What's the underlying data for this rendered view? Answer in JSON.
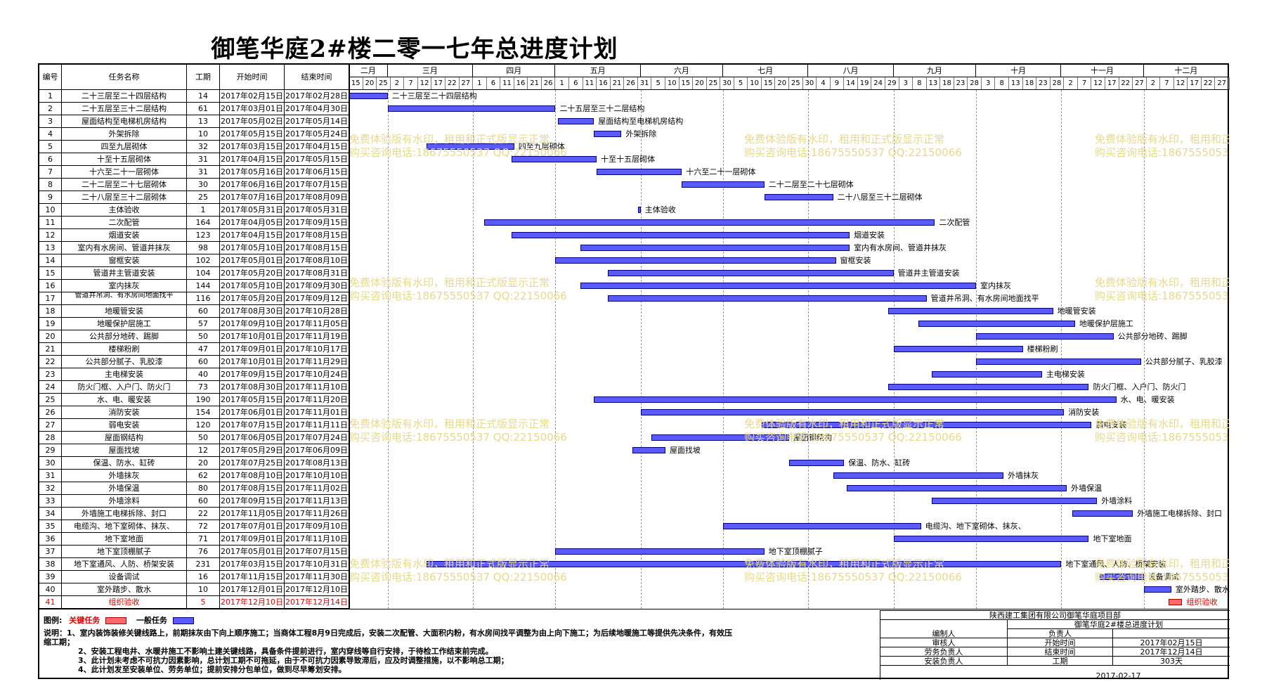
{
  "title": "御笔华庭2#楼二零一七年总进度计划",
  "headers": {
    "id": "编号",
    "name": "任务名称",
    "dur": "工期",
    "start": "开始时间",
    "end": "结束时间"
  },
  "timeline": {
    "months": [
      "二月",
      "三月",
      "四月",
      "五月",
      "六月",
      "七月",
      "八月",
      "九月",
      "十月",
      "十一月",
      "十二月"
    ],
    "days": [
      "15",
      "20",
      "25",
      "2",
      "7",
      "12",
      "17",
      "22",
      "27",
      "1",
      "6",
      "11",
      "16",
      "21",
      "26",
      "1",
      "6",
      "11",
      "16",
      "21",
      "26",
      "31",
      "5",
      "10",
      "15",
      "20",
      "25",
      "30",
      "5",
      "10",
      "15",
      "20",
      "25",
      "30",
      "4",
      "9",
      "14",
      "19",
      "24",
      "29",
      "3",
      "8",
      "13",
      "18",
      "23",
      "28",
      "3",
      "8",
      "13",
      "18",
      "23",
      "28",
      "2",
      "7",
      "12",
      "17",
      "22",
      "27",
      "2",
      "7",
      "12",
      "17",
      "22",
      "27",
      "1"
    ]
  },
  "chart_data": {
    "type": "gantt",
    "title": "御笔华庭2#楼二零一七年总进度计划",
    "tasks": [
      {
        "id": "1",
        "name": "二十三层至二十四层结构",
        "dur": "14",
        "start": "2017年02月15日",
        "end": "2017年02月28日",
        "label": "二十三层至二十四层结构"
      },
      {
        "id": "2",
        "name": "二十五层至三十二层结构",
        "dur": "61",
        "start": "2017年03月01日",
        "end": "2017年04月30日",
        "label": "二十五层至三十二层结构"
      },
      {
        "id": "3",
        "name": "屋面结构至电梯机房结构",
        "dur": "13",
        "start": "2017年05月02日",
        "end": "2017年05月14日",
        "label": "屋面结构至电梯机房结构"
      },
      {
        "id": "4",
        "name": "外架拆除",
        "dur": "10",
        "start": "2017年05月15日",
        "end": "2017年05月24日",
        "label": "外架拆除"
      },
      {
        "id": "5",
        "name": "四至九层砌体",
        "dur": "32",
        "start": "2017年03月15日",
        "end": "2017年04月15日",
        "label": "四至九层砌体"
      },
      {
        "id": "6",
        "name": "十至十五层砌体",
        "dur": "31",
        "start": "2017年04月15日",
        "end": "2017年05月15日",
        "label": "十至十五层砌体"
      },
      {
        "id": "7",
        "name": "十六至二十一层砌体",
        "dur": "31",
        "start": "2017年05月16日",
        "end": "2017年06月15日",
        "label": "十六至二十一层砌体"
      },
      {
        "id": "8",
        "name": "二十二层至二十七层砌体",
        "dur": "30",
        "start": "2017年06月16日",
        "end": "2017年07月15日",
        "label": "二十二层至二十七层砌体"
      },
      {
        "id": "9",
        "name": "二十八层至三十二层砌体",
        "dur": "25",
        "start": "2017年07月16日",
        "end": "2017年08月09日",
        "label": "二十八层至三十二层砌体"
      },
      {
        "id": "10",
        "name": "主体验收",
        "dur": "1",
        "start": "2017年05月31日",
        "end": "2017年05月31日",
        "label": "主体验收"
      },
      {
        "id": "11",
        "name": "二次配管",
        "dur": "164",
        "start": "2017年04月05日",
        "end": "2017年09月15日",
        "label": "二次配管"
      },
      {
        "id": "12",
        "name": "烟道安装",
        "dur": "123",
        "start": "2017年04月15日",
        "end": "2017年08月15日",
        "label": "烟道安装"
      },
      {
        "id": "13",
        "name": "室内有水房间、管道井抹灰",
        "dur": "98",
        "start": "2017年05月10日",
        "end": "2017年08月15日",
        "label": "室内有水房间、管道井抹灰"
      },
      {
        "id": "14",
        "name": "窗框安装",
        "dur": "102",
        "start": "2017年05月01日",
        "end": "2017年08月10日",
        "label": "窗框安装"
      },
      {
        "id": "15",
        "name": "管道井主管道安装",
        "dur": "104",
        "start": "2017年05月20日",
        "end": "2017年08月31日",
        "label": "管道井主管道安装"
      },
      {
        "id": "16",
        "name": "室内抹灰",
        "dur": "144",
        "start": "2017年05月10日",
        "end": "2017年09月30日",
        "label": "室内抹灰"
      },
      {
        "id": "17",
        "name": "管道井吊洞、有水房间地面找平",
        "dur": "116",
        "start": "2017年05月20日",
        "end": "2017年09月12日",
        "label": "管道井吊洞、有水房间地面找平"
      },
      {
        "id": "18",
        "name": "地暖管安装",
        "dur": "60",
        "start": "2017年08月30日",
        "end": "2017年10月28日",
        "label": "地暖管安装"
      },
      {
        "id": "19",
        "name": "地暖保护层施工",
        "dur": "57",
        "start": "2017年09月10日",
        "end": "2017年11月05日",
        "label": "地暖保护层施工"
      },
      {
        "id": "20",
        "name": "公共部分地砖、踢脚",
        "dur": "50",
        "start": "2017年10月01日",
        "end": "2017年11月19日",
        "label": "公共部分地砖、踢脚"
      },
      {
        "id": "21",
        "name": "楼梯粉刷",
        "dur": "47",
        "start": "2017年09月01日",
        "end": "2017年10月17日",
        "label": "楼梯粉刷"
      },
      {
        "id": "22",
        "name": "公共部分腻子、乳胶漆",
        "dur": "60",
        "start": "2017年10月01日",
        "end": "2017年11月29日",
        "label": "公共部分腻子、乳胶漆"
      },
      {
        "id": "23",
        "name": "主电梯安装",
        "dur": "40",
        "start": "2017年09月15日",
        "end": "2017年10月24日",
        "label": "主电梯安装"
      },
      {
        "id": "24",
        "name": "防火门框、入户门、防火门",
        "dur": "73",
        "start": "2017年08月30日",
        "end": "2017年11月10日",
        "label": "防火门框、入户门、防火门"
      },
      {
        "id": "25",
        "name": "水、电、暖安装",
        "dur": "190",
        "start": "2017年05月15日",
        "end": "2017年11月20日",
        "label": "水、电、暖安装"
      },
      {
        "id": "26",
        "name": "消防安装",
        "dur": "154",
        "start": "2017年06月01日",
        "end": "2017年11月01日",
        "label": "消防安装"
      },
      {
        "id": "27",
        "name": "弱电安装",
        "dur": "120",
        "start": "2017年07月15日",
        "end": "2017年11月11日",
        "label": "弱电安装"
      },
      {
        "id": "28",
        "name": "屋面钢结构",
        "dur": "50",
        "start": "2017年06月05日",
        "end": "2017年07月24日",
        "label": "屋面钢结构"
      },
      {
        "id": "29",
        "name": "屋面找坡",
        "dur": "12",
        "start": "2017年05月29日",
        "end": "2017年06月09日",
        "label": "屋面找坡"
      },
      {
        "id": "30",
        "name": "保温、防水、缸砖",
        "dur": "20",
        "start": "2017年07月25日",
        "end": "2017年08月13日",
        "label": "保温、防水、缸砖"
      },
      {
        "id": "31",
        "name": "外墙抹灰",
        "dur": "62",
        "start": "2017年08月10日",
        "end": "2017年10月10日",
        "label": "外墙抹灰"
      },
      {
        "id": "32",
        "name": "外墙保温",
        "dur": "80",
        "start": "2017年08月15日",
        "end": "2017年11月02日",
        "label": "外墙保温"
      },
      {
        "id": "33",
        "name": "外墙涂料",
        "dur": "60",
        "start": "2017年09月15日",
        "end": "2017年11月13日",
        "label": "外墙涂料"
      },
      {
        "id": "34",
        "name": "外墙施工电梯拆除、封口",
        "dur": "22",
        "start": "2017年11月05日",
        "end": "2017年11月26日",
        "label": "外墙施工电梯拆除、封口"
      },
      {
        "id": "35",
        "name": "电缆沟、地下室砌体、抹灰、",
        "dur": "72",
        "start": "2017年07月01日",
        "end": "2017年09月10日",
        "label": "电缆沟、地下室砌体、抹灰、"
      },
      {
        "id": "36",
        "name": "地下室地面",
        "dur": "71",
        "start": "2017年09月01日",
        "end": "2017年11月10日",
        "label": "地下室地面"
      },
      {
        "id": "37",
        "name": "地下室顶棚腻子",
        "dur": "76",
        "start": "2017年05月01日",
        "end": "2017年07月15日",
        "label": "地下室顶棚腻子"
      },
      {
        "id": "38",
        "name": "地下室通风、人防、桥架安装",
        "dur": "231",
        "start": "2017年03月15日",
        "end": "2017年10月31日",
        "label": "地下室通风、人防、桥架安装"
      },
      {
        "id": "39",
        "name": "设备调试",
        "dur": "16",
        "start": "2017年11月15日",
        "end": "2017年11月30日",
        "label": "设备调试"
      },
      {
        "id": "40",
        "name": "室外踏步、散水",
        "dur": "10",
        "start": "2017年12月01日",
        "end": "2017年12月10日",
        "label": "室外踏步、散水"
      },
      {
        "id": "41",
        "name": "组织验收",
        "dur": "5",
        "start": "2017年12月10日",
        "end": "2017年12月14日",
        "label": "组织验收",
        "critical": true
      }
    ]
  },
  "legend": {
    "title": "图例:",
    "critical": "关键任务",
    "normal": "一般任务"
  },
  "notes": [
    "说明：1、室内装饰装修关键线路上，前期抹灰由下向上顺序施工；当商体工程8月9日完成后，安装二次配管、大面积内粉，有水房间找平调整为由上向下施工；为后续地暖施工等提供先决条件，有效压",
    "缩工期；",
    "2、安装工程电井、水暖井施工不影响土建关键线路，具备条件提前进行，室内穿线等自行安排，于待检工作结束前完成。",
    "3、此计划未考虑不可抗力因素影响，总计划工期不可拖延，由于不可抗力因素导致滞后，应及时调整措施，以不影响总工期；",
    "4、此计划发至安装单位、劳务单位；提前安排分包单位，做到尽早筹划安排。"
  ],
  "info": {
    "company": "陕西建工集团有限公司御笔华庭项目部",
    "plan": "御笔华庭2#楼总进度计划",
    "rows": [
      {
        "k": "编制人",
        "v": "负责人",
        "v2": ""
      },
      {
        "k": "审核人",
        "v": "开始时间",
        "v2": "2017年02月15日"
      },
      {
        "k": "劳务负责人",
        "v": "结束时间",
        "v2": "2017年12月14日"
      },
      {
        "k": "安装负责人",
        "v": "工期",
        "v2": "303天"
      }
    ],
    "date": "2017-02-17"
  },
  "watermark": {
    "line1": "免费体验版有水印，租用和正式版显示正常",
    "line2": "购买咨询电话:18675550537 QQ:22150066"
  },
  "colors": {
    "bar": "#5a5aff",
    "critical": "#ff6b6b",
    "watermark": "#e8d98a"
  }
}
